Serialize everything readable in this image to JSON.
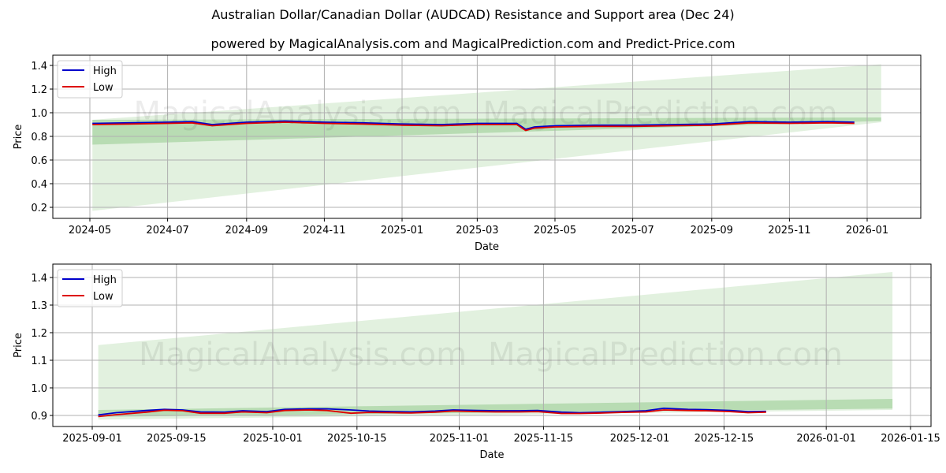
{
  "header": {
    "title": "Australian Dollar/Canadian Dollar (AUDCAD) Resistance and Support area (Dec 24)",
    "subtitle": "powered by MagicalAnalysis.com and MagicalPrediction.com and Predict-Price.com"
  },
  "watermarks": [
    "MagicalAnalysis.com",
    "MagicalPrediction.com"
  ],
  "colors": {
    "high": "#0000cc",
    "low": "#dd0000",
    "band_dark": "#a9d4a4",
    "band_light": "#d6ebd2",
    "grid": "#b0b0b0"
  },
  "chart_data": [
    {
      "type": "line",
      "title": "",
      "xlabel": "Date",
      "ylabel": "Price",
      "ylim": [
        0.1,
        1.48
      ],
      "grid": true,
      "legend_position": "upper left",
      "legend": [
        "High",
        "Low"
      ],
      "x_ticks": [
        "2024-05",
        "2024-07",
        "2024-09",
        "2024-11",
        "2025-01",
        "2025-03",
        "2025-05",
        "2025-07",
        "2025-09",
        "2025-11",
        "2026-01"
      ],
      "y_ticks": [
        "0.2",
        "0.4",
        "0.6",
        "0.8",
        "1.0",
        "1.2",
        "1.4"
      ],
      "x": [
        "2024-05-03",
        "2024-06-01",
        "2024-07-01",
        "2024-07-20",
        "2024-08-05",
        "2024-09-01",
        "2024-10-01",
        "2024-11-01",
        "2024-12-01",
        "2025-01-01",
        "2025-02-01",
        "2025-03-01",
        "2025-04-01",
        "2025-04-08",
        "2025-04-15",
        "2025-05-01",
        "2025-06-01",
        "2025-07-01",
        "2025-08-01",
        "2025-09-01",
        "2025-10-01",
        "2025-11-01",
        "2025-12-01",
        "2025-12-22"
      ],
      "series": [
        {
          "name": "High",
          "values": [
            0.91,
            0.915,
            0.92,
            0.925,
            0.9,
            0.92,
            0.93,
            0.92,
            0.915,
            0.905,
            0.9,
            0.91,
            0.91,
            0.86,
            0.88,
            0.89,
            0.895,
            0.895,
            0.9,
            0.905,
            0.925,
            0.92,
            0.925,
            0.92
          ]
        },
        {
          "name": "Low",
          "values": [
            0.9,
            0.905,
            0.91,
            0.915,
            0.89,
            0.91,
            0.92,
            0.91,
            0.905,
            0.895,
            0.89,
            0.9,
            0.9,
            0.85,
            0.87,
            0.88,
            0.885,
            0.885,
            0.89,
            0.895,
            0.915,
            0.91,
            0.915,
            0.91
          ]
        }
      ],
      "bands": [
        {
          "name": "support-dark",
          "x_start": "2024-05-03",
          "x_end": "2026-01-12",
          "lower_start": 0.73,
          "lower_end": 0.93,
          "upper_start": 0.94,
          "upper_end": 0.96
        },
        {
          "name": "range-light",
          "x_start": "2024-05-03",
          "x_end": "2026-01-12",
          "lower_start": 0.17,
          "lower_end": 0.92,
          "upper_start": 0.94,
          "upper_end": 1.41
        }
      ]
    },
    {
      "type": "line",
      "title": "",
      "xlabel": "Date",
      "ylabel": "Price",
      "ylim": [
        0.85,
        1.45
      ],
      "grid": true,
      "legend_position": "upper left",
      "legend": [
        "High",
        "Low"
      ],
      "x_ticks": [
        "2025-09-01",
        "2025-09-15",
        "2025-10-01",
        "2025-10-15",
        "2025-11-01",
        "2025-11-15",
        "2025-12-01",
        "2025-12-15",
        "2026-01-01",
        "2026-01-15"
      ],
      "y_ticks": [
        "0.9",
        "1.0",
        "1.1",
        "1.2",
        "1.3",
        "1.4"
      ],
      "x": [
        "2025-09-02",
        "2025-09-05",
        "2025-09-10",
        "2025-09-13",
        "2025-09-16",
        "2025-09-19",
        "2025-09-23",
        "2025-09-26",
        "2025-09-30",
        "2025-10-03",
        "2025-10-07",
        "2025-10-10",
        "2025-10-14",
        "2025-10-17",
        "2025-10-21",
        "2025-10-24",
        "2025-10-28",
        "2025-10-31",
        "2025-11-04",
        "2025-11-07",
        "2025-11-11",
        "2025-11-14",
        "2025-11-18",
        "2025-11-21",
        "2025-11-25",
        "2025-11-28",
        "2025-12-02",
        "2025-12-05",
        "2025-12-09",
        "2025-12-12",
        "2025-12-16",
        "2025-12-19",
        "2025-12-22"
      ],
      "series": [
        {
          "name": "High",
          "values": [
            0.902,
            0.91,
            0.918,
            0.922,
            0.92,
            0.913,
            0.912,
            0.917,
            0.914,
            0.922,
            0.924,
            0.924,
            0.92,
            0.916,
            0.914,
            0.913,
            0.916,
            0.92,
            0.918,
            0.917,
            0.917,
            0.918,
            0.912,
            0.91,
            0.912,
            0.914,
            0.917,
            0.926,
            0.922,
            0.921,
            0.918,
            0.914,
            0.915
          ]
        },
        {
          "name": "Low",
          "values": [
            0.896,
            0.903,
            0.912,
            0.919,
            0.917,
            0.908,
            0.908,
            0.913,
            0.91,
            0.918,
            0.92,
            0.918,
            0.908,
            0.911,
            0.91,
            0.909,
            0.912,
            0.916,
            0.914,
            0.913,
            0.913,
            0.914,
            0.907,
            0.907,
            0.909,
            0.911,
            0.913,
            0.92,
            0.918,
            0.917,
            0.914,
            0.91,
            0.912
          ]
        }
      ],
      "bands": [
        {
          "name": "support-dark",
          "x_start": "2025-09-02",
          "x_end": "2026-01-12",
          "lower_start": 0.895,
          "lower_end": 0.925,
          "upper_start": 0.92,
          "upper_end": 0.96
        },
        {
          "name": "range-light",
          "x_start": "2025-09-02",
          "x_end": "2026-01-12",
          "lower_start": 0.885,
          "lower_end": 0.92,
          "upper_start": 1.155,
          "upper_end": 1.42
        }
      ]
    }
  ]
}
